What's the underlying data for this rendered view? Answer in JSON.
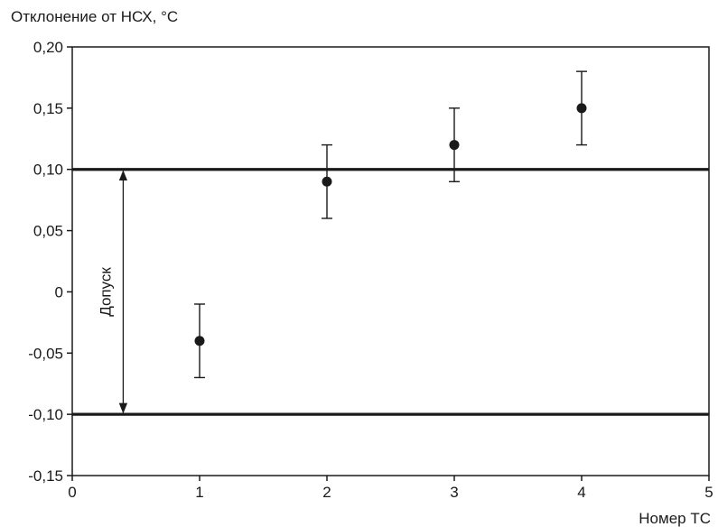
{
  "chart_data": {
    "type": "scatter",
    "ylabel": "Отклонение от НСХ, °C",
    "xlabel": "Номер ТС",
    "xlim": [
      0,
      5
    ],
    "ylim": [
      -0.15,
      0.2
    ],
    "x_ticks": [
      0,
      1,
      2,
      3,
      4,
      5
    ],
    "x_tick_labels": [
      "0",
      "1",
      "2",
      "3",
      "4",
      "5"
    ],
    "y_ticks": [
      -0.15,
      -0.1,
      -0.05,
      0,
      0.05,
      0.1,
      0.15,
      0.2
    ],
    "y_tick_labels": [
      "-0,15",
      "-0,10",
      "-0,05",
      "0",
      "0,05",
      "0,10",
      "0,15",
      "0,20"
    ],
    "grid": false,
    "series": [
      {
        "points": [
          {
            "x": 1,
            "y": -0.04,
            "err_low": -0.07,
            "err_high": -0.01
          },
          {
            "x": 2,
            "y": 0.09,
            "err_low": 0.06,
            "err_high": 0.12
          },
          {
            "x": 3,
            "y": 0.12,
            "err_low": 0.09,
            "err_high": 0.15
          },
          {
            "x": 4,
            "y": 0.15,
            "err_low": 0.12,
            "err_high": 0.18
          }
        ]
      }
    ],
    "reference_lines": [
      {
        "axis": "y",
        "value": 0.1
      },
      {
        "axis": "y",
        "value": -0.1
      }
    ],
    "annotations": [
      {
        "text": "Допуск",
        "x": 0.4,
        "y_from": -0.1,
        "y_to": 0.1
      }
    ],
    "colors": {
      "ink": "#1a1a1a",
      "background": "#ffffff"
    }
  }
}
